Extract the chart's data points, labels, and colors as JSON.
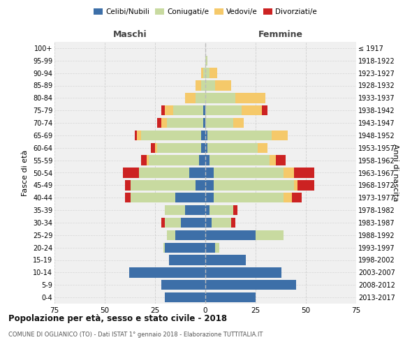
{
  "age_groups": [
    "0-4",
    "5-9",
    "10-14",
    "15-19",
    "20-24",
    "25-29",
    "30-34",
    "35-39",
    "40-44",
    "45-49",
    "50-54",
    "55-59",
    "60-64",
    "65-69",
    "70-74",
    "75-79",
    "80-84",
    "85-89",
    "90-94",
    "95-99",
    "100+"
  ],
  "birth_years": [
    "2013-2017",
    "2008-2012",
    "2003-2007",
    "1998-2002",
    "1993-1997",
    "1988-1992",
    "1983-1987",
    "1978-1982",
    "1973-1977",
    "1968-1972",
    "1963-1967",
    "1958-1962",
    "1953-1957",
    "1948-1952",
    "1943-1947",
    "1938-1942",
    "1933-1937",
    "1928-1932",
    "1923-1927",
    "1918-1922",
    "≤ 1917"
  ],
  "male": {
    "celibi": [
      20,
      22,
      38,
      18,
      20,
      15,
      12,
      10,
      15,
      5,
      8,
      3,
      2,
      2,
      1,
      1,
      0,
      0,
      0,
      0,
      0
    ],
    "coniugati": [
      0,
      0,
      0,
      0,
      1,
      4,
      8,
      10,
      22,
      32,
      25,
      25,
      22,
      30,
      18,
      15,
      5,
      2,
      1,
      0,
      0
    ],
    "vedovi": [
      0,
      0,
      0,
      0,
      0,
      0,
      0,
      0,
      0,
      0,
      0,
      1,
      1,
      2,
      3,
      4,
      5,
      3,
      1,
      0,
      0
    ],
    "divorziati": [
      0,
      0,
      0,
      0,
      0,
      0,
      2,
      0,
      3,
      3,
      8,
      3,
      2,
      1,
      2,
      2,
      0,
      0,
      0,
      0,
      0
    ]
  },
  "female": {
    "nubili": [
      25,
      45,
      38,
      20,
      5,
      25,
      3,
      2,
      4,
      4,
      4,
      2,
      1,
      1,
      0,
      0,
      0,
      0,
      0,
      0,
      0
    ],
    "coniugate": [
      0,
      0,
      0,
      0,
      2,
      14,
      10,
      12,
      35,
      40,
      35,
      30,
      25,
      32,
      14,
      18,
      15,
      5,
      2,
      1,
      0
    ],
    "vedove": [
      0,
      0,
      0,
      0,
      0,
      0,
      0,
      0,
      4,
      2,
      5,
      3,
      5,
      8,
      5,
      10,
      15,
      8,
      4,
      0,
      0
    ],
    "divorziate": [
      0,
      0,
      0,
      0,
      0,
      0,
      2,
      2,
      5,
      8,
      10,
      5,
      0,
      0,
      0,
      3,
      0,
      0,
      0,
      0,
      0
    ]
  },
  "colors": {
    "celibi": "#3d6fa8",
    "coniugati": "#c8daa0",
    "vedovi": "#f5c96a",
    "divorziati": "#cc2222"
  },
  "xlim": 75,
  "title": "Popolazione per età, sesso e stato civile - 2018",
  "subtitle": "COMUNE DI OGLIANICO (TO) - Dati ISTAT 1° gennaio 2018 - Elaborazione TUTTITALIA.IT",
  "ylabel_left": "Fasce di età",
  "ylabel_right": "Anni di nascita",
  "xlabel_male": "Maschi",
  "xlabel_female": "Femmine",
  "legend_labels": [
    "Celibi/Nubili",
    "Coniugati/e",
    "Vedovi/e",
    "Divorziati/e"
  ],
  "background_color": "#ffffff",
  "plot_bg_color": "#f0f0f0",
  "grid_color": "#cccccc"
}
